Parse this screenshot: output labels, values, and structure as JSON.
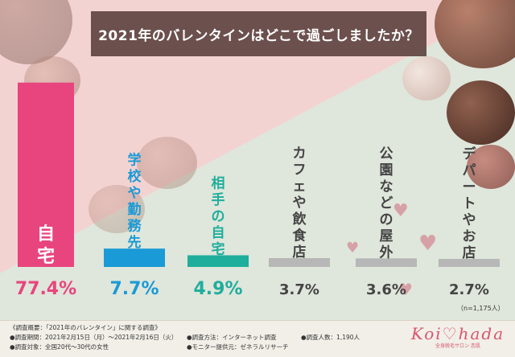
{
  "chart_data": {
    "type": "bar",
    "title": "2021年のバレンタインはどこで過ごしましたか？",
    "categories": [
      "自宅",
      "学校や勤務先",
      "相手の自宅",
      "カフェや飲食店",
      "公園などの屋外",
      "デパートやお店"
    ],
    "values": [
      77.4,
      7.7,
      4.9,
      3.7,
      3.6,
      2.7
    ],
    "value_labels": [
      "77.4%",
      "7.7%",
      "4.9%",
      "3.7%",
      "3.6%",
      "2.7%"
    ],
    "colors": [
      "#e8457e",
      "#1a9ad6",
      "#1fae9c",
      "#b7b7b7",
      "#b7b7b7",
      "#b7b7b7"
    ],
    "label_colors": [
      "#ffffff",
      "#1a9ad6",
      "#1fae9c",
      "#444444",
      "#444444",
      "#444444"
    ],
    "ylim": [
      0,
      80
    ],
    "note": "（n=1,175人）"
  },
  "footer": {
    "outline": "《調査概要：「2021年のバレンタイン」に関する調査》",
    "period": "●調査期間：2021年2月15日（月）～2021年2月16日（火）",
    "target": "●調査対象：全国20代～30代の女性",
    "method": "●調査方法：インターネット調査",
    "provider": "●モニター提供元：ゼネラルリサーチ",
    "count": "●調査人数：1,190人"
  },
  "logo": {
    "main": "Koi♡hada",
    "sub": "全身脱毛サロン 恋肌"
  }
}
